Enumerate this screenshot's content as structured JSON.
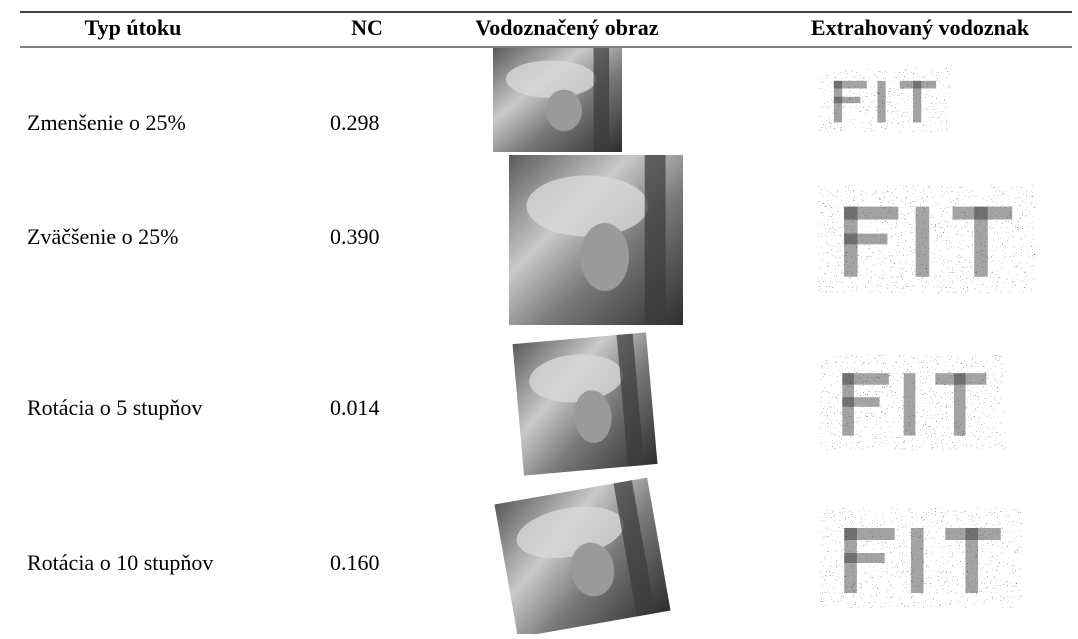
{
  "table": {
    "header": [
      "Typ útoku",
      "NC",
      "Vodoznačený obraz",
      "Extrahovaný vodoznak"
    ],
    "rows": [
      [
        "Zmenšenie o 25%",
        "0.298"
      ],
      [
        "Zväčšenie o 25%",
        "0.390"
      ],
      [
        "Rotácia o 5 stupňov",
        "0.014"
      ],
      [
        "Rotácia o 10 stupňov",
        "0.160"
      ]
    ]
  }
}
